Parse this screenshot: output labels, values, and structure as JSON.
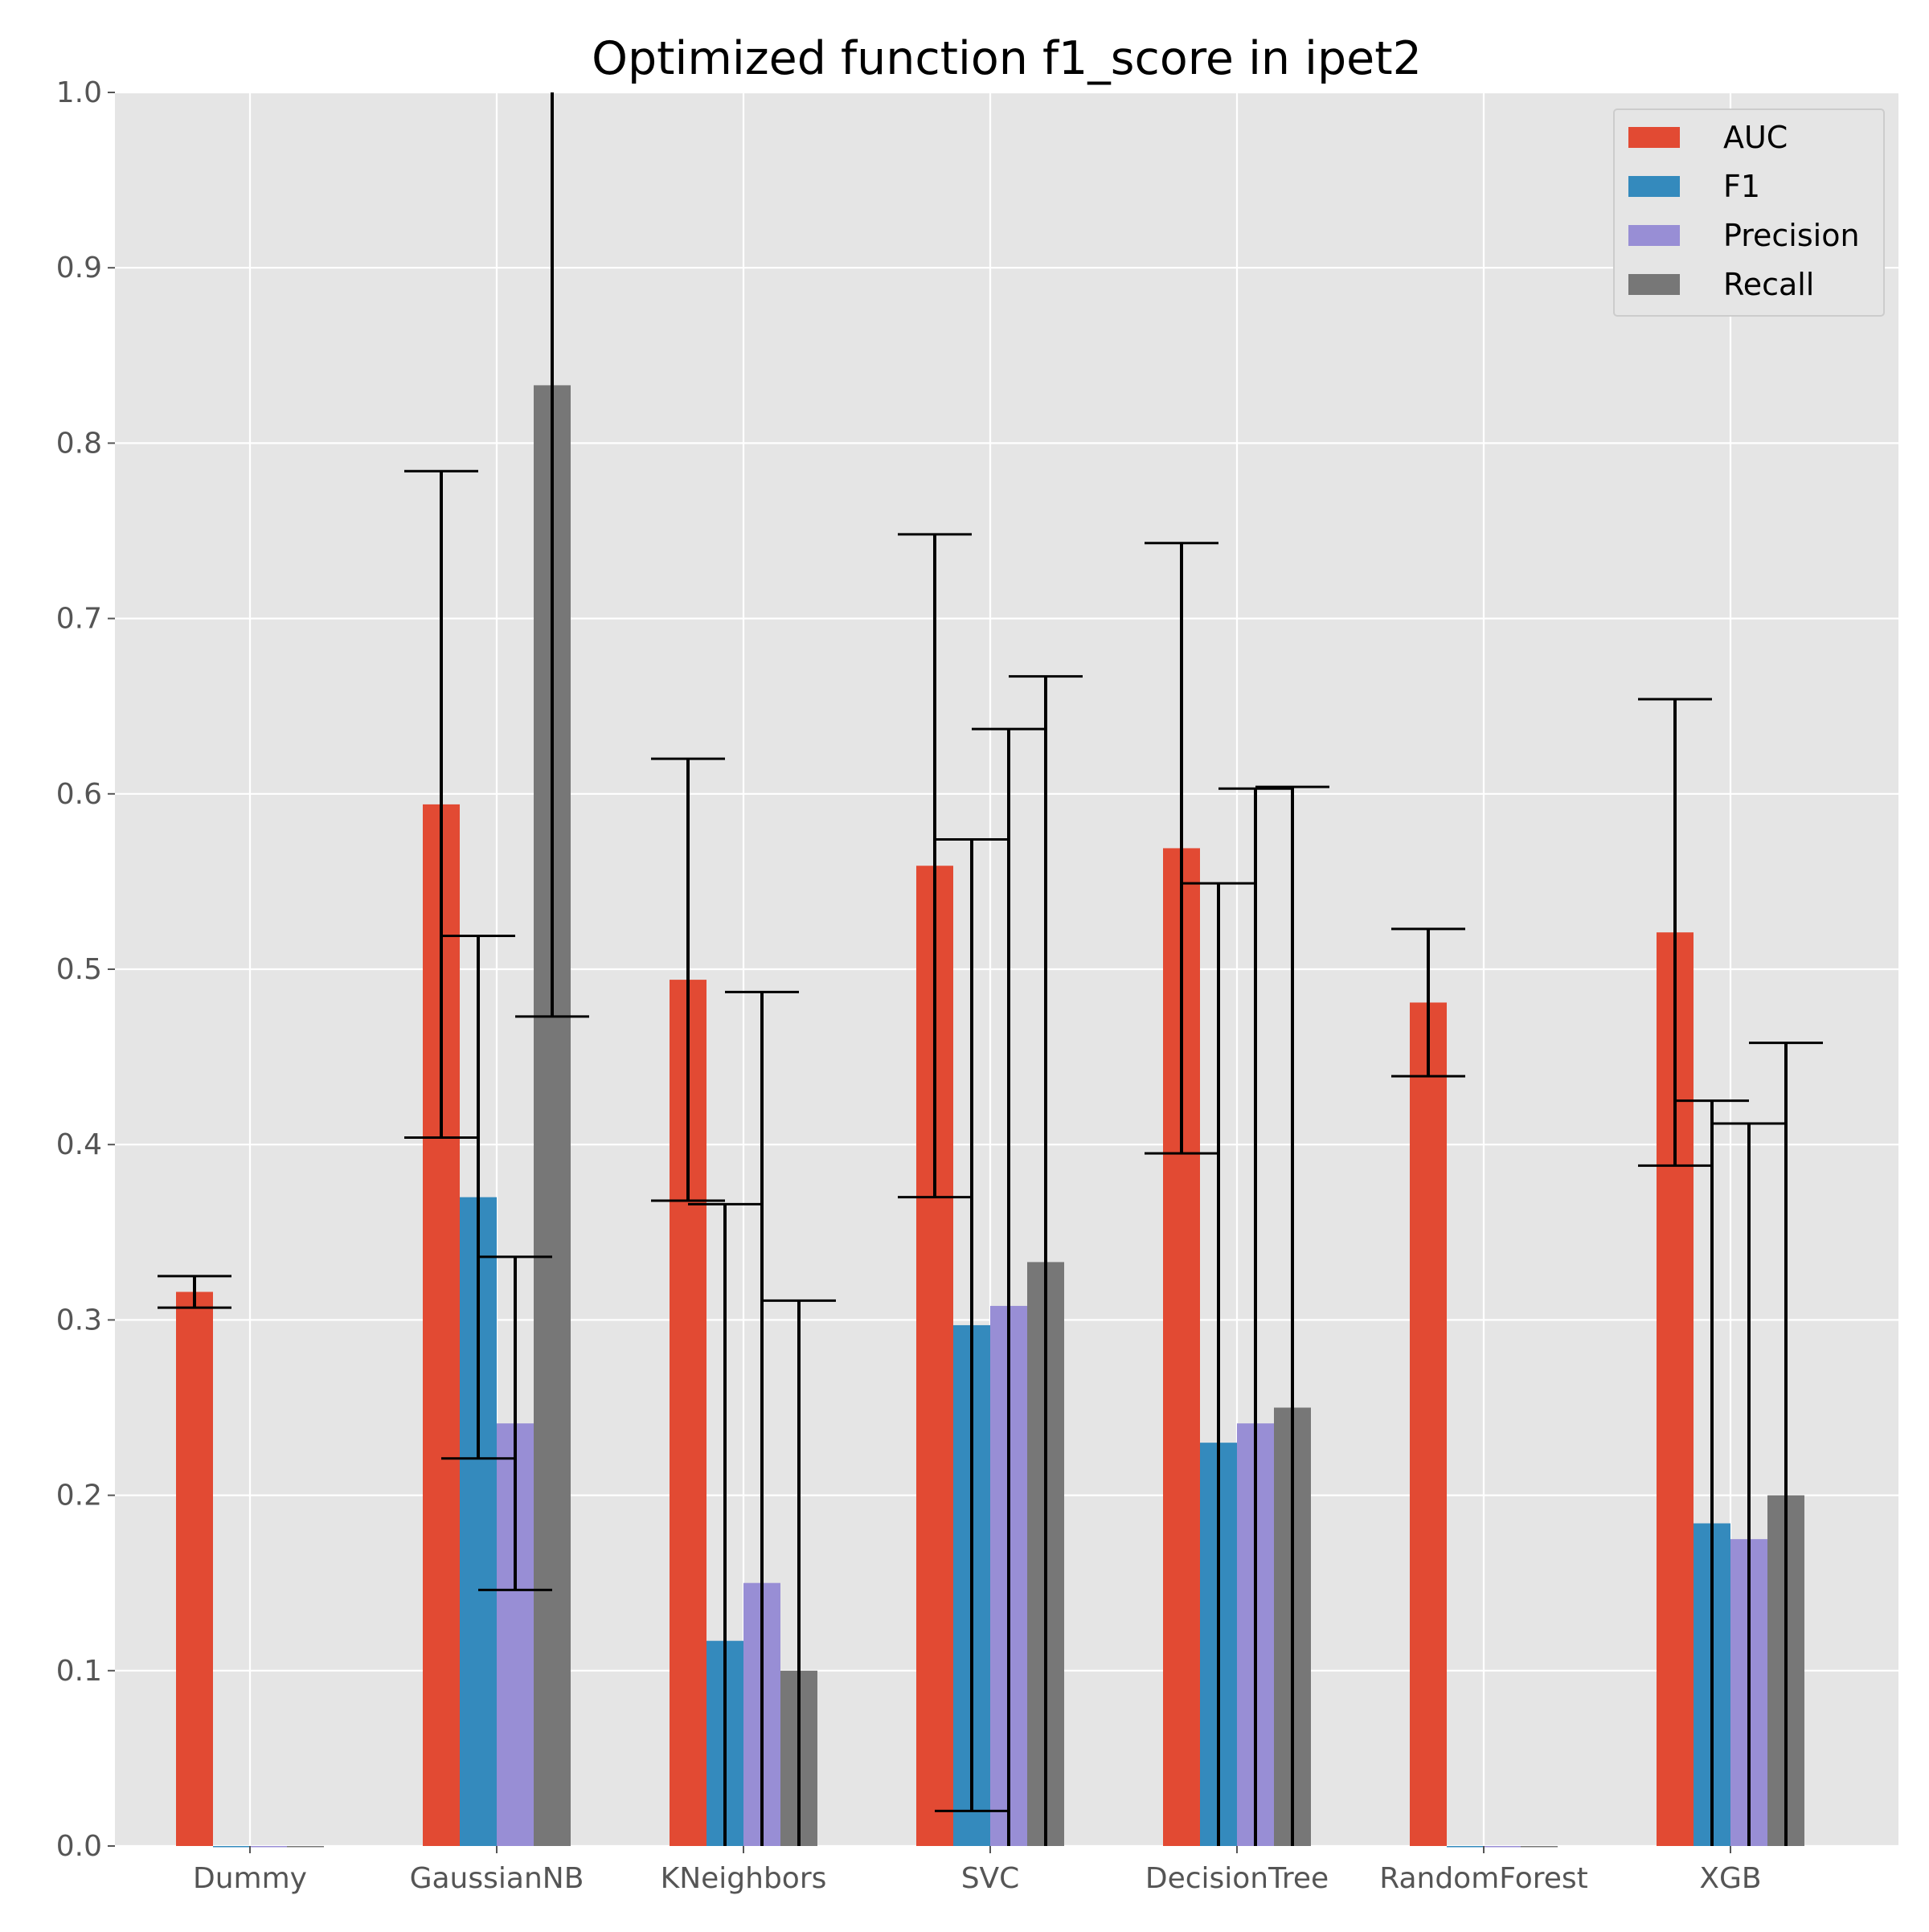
{
  "chart_data": {
    "type": "bar",
    "title": "Optimized function f1_score in ipet2",
    "xlabel": "",
    "ylabel": "",
    "ylim": [
      0,
      1.0
    ],
    "yticks": [
      "0.0",
      "0.1",
      "0.2",
      "0.3",
      "0.4",
      "0.5",
      "0.6",
      "0.7",
      "0.8",
      "0.9",
      "1.0"
    ],
    "grid": true,
    "legend_position": "top-right",
    "categories": [
      "Dummy",
      "GaussianNB",
      "KNeighbors",
      "SVC",
      "DecisionTree",
      "RandomForest",
      "XGB"
    ],
    "series": [
      {
        "name": "AUC",
        "color": "#E24A33",
        "values": [
          0.316,
          0.594,
          0.494,
          0.559,
          0.569,
          0.481,
          0.521
        ],
        "error": [
          0.009,
          0.19,
          0.126,
          0.189,
          0.174,
          0.042,
          0.133
        ]
      },
      {
        "name": "F1",
        "color": "#348ABD",
        "values": [
          0.0,
          0.37,
          0.117,
          0.297,
          0.23,
          0.0,
          0.184
        ],
        "error": [
          null,
          0.149,
          0.249,
          0.277,
          0.319,
          null,
          0.241
        ]
      },
      {
        "name": "Precision",
        "color": "#988ED5",
        "values": [
          0.0,
          0.241,
          0.15,
          0.308,
          0.241,
          0.0,
          0.175
        ],
        "error": [
          null,
          0.095,
          0.337,
          0.329,
          0.362,
          null,
          0.237
        ]
      },
      {
        "name": "Recall",
        "color": "#777777",
        "values": [
          0.0,
          0.833,
          0.1,
          0.333,
          0.25,
          0.0,
          0.2
        ],
        "error": [
          null,
          0.36,
          0.211,
          0.334,
          0.354,
          null,
          0.258
        ]
      }
    ]
  }
}
